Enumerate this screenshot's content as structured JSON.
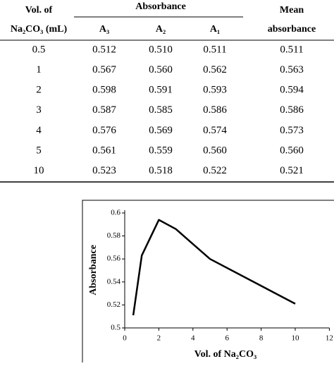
{
  "table": {
    "header": {
      "vol_line1": "Vol.  of",
      "vol_line2": "Na₂CO₃ (mL)",
      "group": "Absorbance",
      "a3": "A₃",
      "a2": "A₂",
      "a1": "A₁",
      "mean_line1": "Mean",
      "mean_line2": "absorbance"
    },
    "rows": [
      [
        "0.5",
        "0.512",
        "0.510",
        "0.511",
        "0.511"
      ],
      [
        "1",
        "0.567",
        "0.560",
        "0.562",
        "0.563"
      ],
      [
        "2",
        "0.598",
        "0.591",
        "0.593",
        "0.594"
      ],
      [
        "3",
        "0.587",
        "0.585",
        "0.586",
        "0.586"
      ],
      [
        "4",
        "0.576",
        "0.569",
        "0.574",
        "0.573"
      ],
      [
        "5",
        "0.561",
        "0.559",
        "0.560",
        "0.560"
      ],
      [
        "10",
        "0.523",
        "0.518",
        "0.522",
        "0.521"
      ]
    ]
  },
  "chart_data": {
    "type": "line",
    "y_label": "Absorbance",
    "x_label": "Vol. of Na₂CO₃",
    "x": [
      0.5,
      1,
      2,
      3,
      4,
      5,
      10
    ],
    "values": [
      0.511,
      0.563,
      0.594,
      0.586,
      0.573,
      0.56,
      0.521
    ],
    "color": "#000000",
    "xlim": [
      0,
      12
    ],
    "xticks": [
      0,
      2,
      4,
      6,
      8,
      10,
      12
    ],
    "ylim": [
      0.5,
      0.6
    ],
    "yticks": [
      0.5,
      0.52,
      0.54,
      0.56,
      0.58,
      0.6
    ]
  }
}
